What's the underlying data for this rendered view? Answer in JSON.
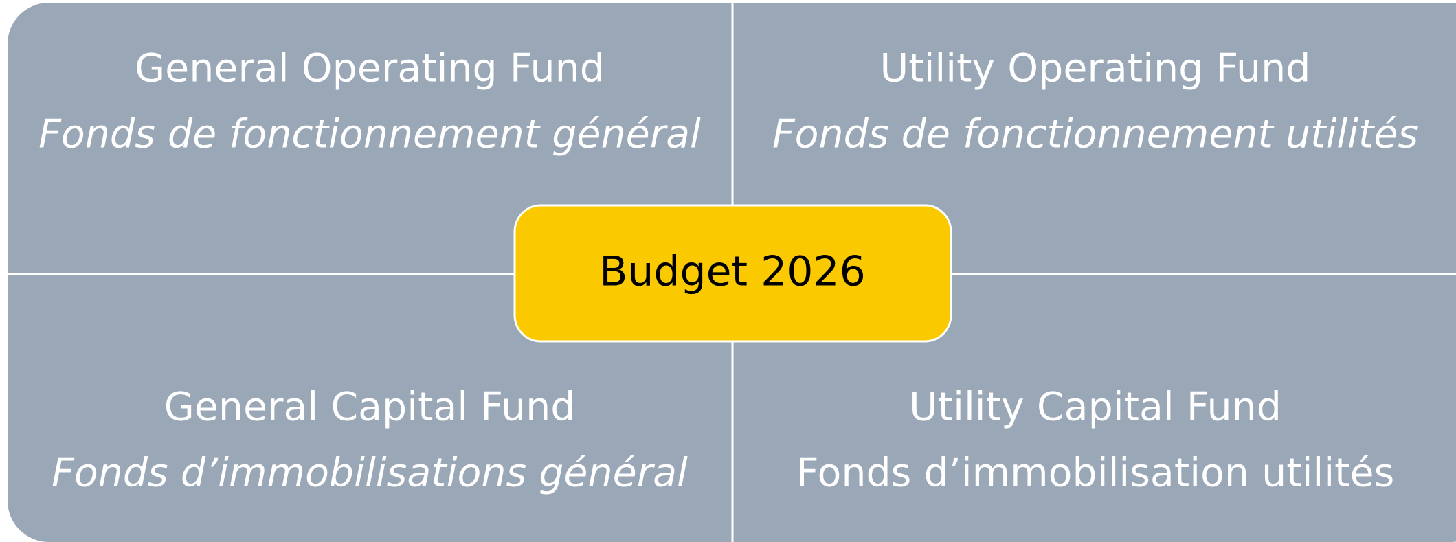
{
  "center": {
    "label": "Budget 2026"
  },
  "quadrants": [
    {
      "title": "General Operating Fund",
      "subtitle": "Fonds de fonctionnement général"
    },
    {
      "title": "Utility Operating Fund",
      "subtitle": "Fonds de fonctionnement utilités"
    },
    {
      "title": "General Capital Fund",
      "subtitle": "Fonds d’immobilisations général"
    },
    {
      "title": "Utility Capital Fund",
      "subtitle": "Fonds d’immobilisation utilités"
    }
  ]
}
